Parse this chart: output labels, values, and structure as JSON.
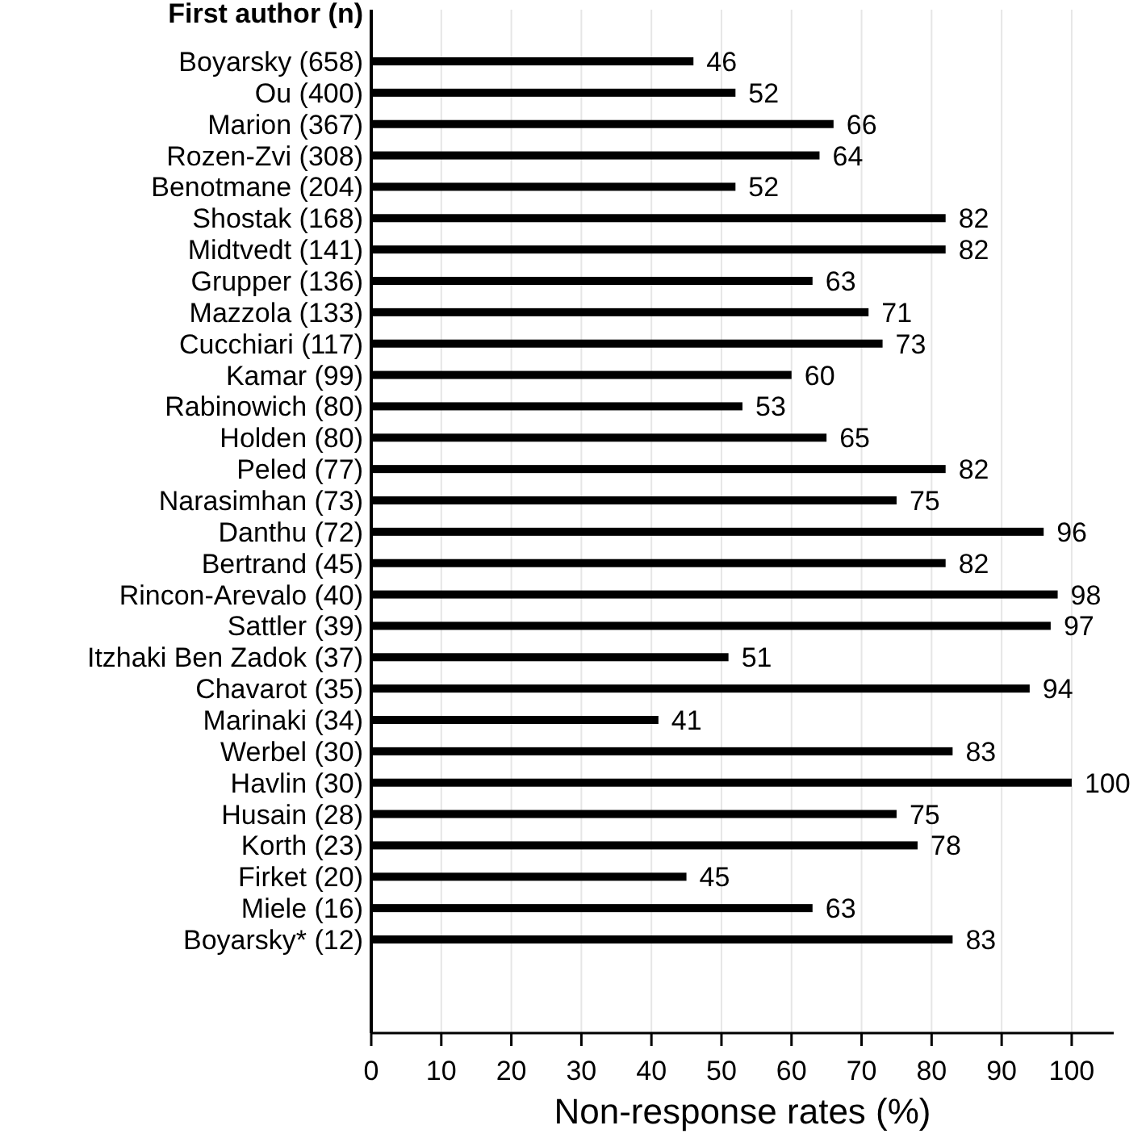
{
  "chart_data": {
    "type": "bar",
    "orientation": "horizontal",
    "ylabel": "First author (n)",
    "xlabel": "Non-response rates (%)",
    "categories": [
      "Boyarsky (658)",
      "Ou (400)",
      "Marion (367)",
      "Rozen-Zvi (308)",
      "Benotmane (204)",
      "Shostak (168)",
      "Midtvedt (141)",
      "Grupper (136)",
      "Mazzola (133)",
      "Cucchiari (117)",
      "Kamar (99)",
      "Rabinowich (80)",
      "Holden (80)",
      "Peled (77)",
      "Narasimhan (73)",
      "Danthu (72)",
      "Bertrand (45)",
      "Rincon-Arevalo (40)",
      "Sattler (39)",
      "Itzhaki Ben Zadok (37)",
      "Chavarot (35)",
      "Marinaki (34)",
      "Werbel (30)",
      "Havlin (30)",
      "Husain (28)",
      "Korth (23)",
      "Firket (20)",
      "Miele (16)",
      "Boyarsky* (12)"
    ],
    "values": [
      46,
      52,
      66,
      64,
      52,
      82,
      82,
      63,
      71,
      73,
      60,
      53,
      65,
      82,
      75,
      96,
      82,
      98,
      97,
      51,
      94,
      41,
      83,
      100,
      75,
      78,
      45,
      63,
      83
    ],
    "color": "#000000",
    "data_labels": true,
    "xlim": [
      0,
      106
    ],
    "xticks": [
      0,
      10,
      20,
      30,
      40,
      50,
      60,
      70,
      80,
      90,
      100
    ],
    "grid": "x"
  }
}
